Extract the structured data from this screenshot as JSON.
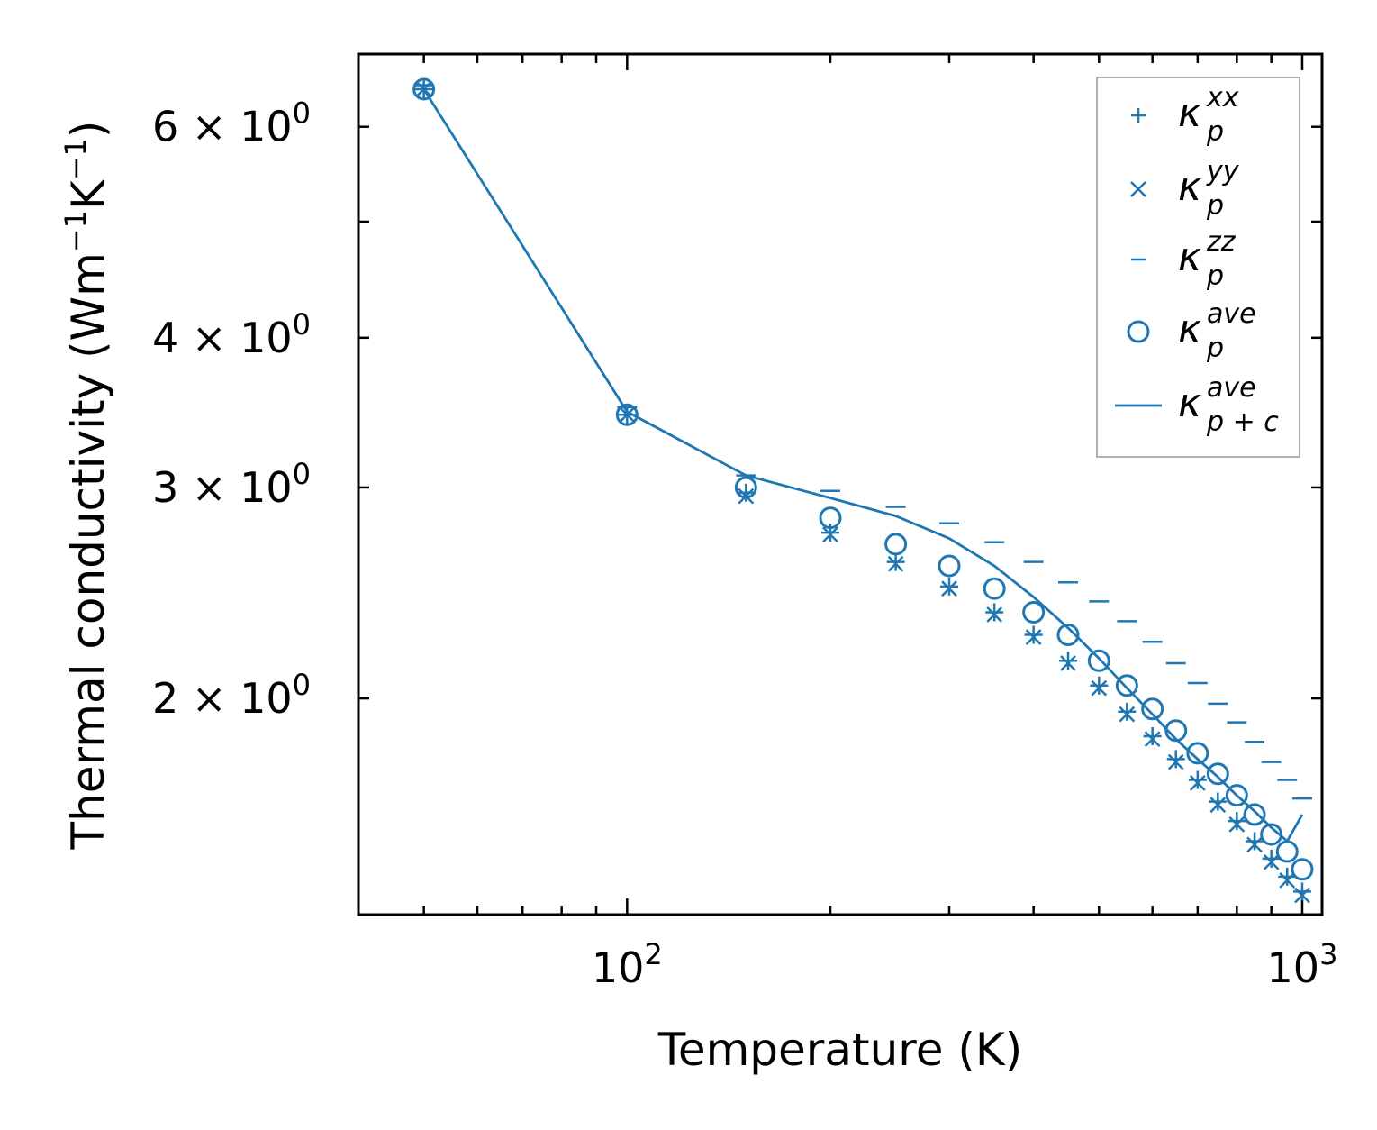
{
  "chart_data": {
    "type": "scatter",
    "xlabel": "Temperature (K)",
    "ylabel_main": "Thermal conductivity (Wm",
    "ylabel_sup1": "−1",
    "ylabel_mid": "K",
    "ylabel_sup2": "−1",
    "ylabel_end": ")",
    "xscale": "log",
    "yscale": "log",
    "xlim": [
      40,
      1070
    ],
    "ylim": [
      1.32,
      6.9
    ],
    "xticks": [
      {
        "value": 100,
        "base": "10",
        "exp": "2"
      },
      {
        "value": 1000,
        "base": "10",
        "exp": "3"
      }
    ],
    "yticks": [
      {
        "value": 2,
        "text": "2 × 10",
        "exp": "0"
      },
      {
        "value": 3,
        "text": "3 × 10",
        "exp": "0"
      },
      {
        "value": 4,
        "text": "4 × 10",
        "exp": "0"
      },
      {
        "value": 6,
        "text": "6 × 10",
        "exp": "0"
      }
    ],
    "color": "#1f77b4",
    "legend_position": "top-right",
    "x": [
      50,
      100,
      150,
      200,
      250,
      300,
      350,
      400,
      450,
      500,
      550,
      600,
      650,
      700,
      750,
      800,
      850,
      900,
      950,
      1000
    ],
    "series": [
      {
        "key": "xx",
        "marker": "plus",
        "legend_base": "κ",
        "legend_sup": "xx",
        "legend_sub": "p",
        "values": [
          6.45,
          3.45,
          2.97,
          2.75,
          2.6,
          2.48,
          2.36,
          2.26,
          2.15,
          2.05,
          1.95,
          1.86,
          1.78,
          1.71,
          1.64,
          1.58,
          1.52,
          1.47,
          1.42,
          1.38
        ]
      },
      {
        "key": "yy",
        "marker": "x",
        "legend_base": "κ",
        "legend_sup": "yy",
        "legend_sub": "p",
        "values": [
          6.45,
          3.45,
          2.95,
          2.74,
          2.59,
          2.47,
          2.35,
          2.25,
          2.14,
          2.04,
          1.94,
          1.85,
          1.77,
          1.7,
          1.63,
          1.57,
          1.51,
          1.46,
          1.41,
          1.37
        ]
      },
      {
        "key": "zz",
        "marker": "minus",
        "legend_base": "κ",
        "legend_sup": "zz",
        "legend_sub": "p",
        "values": [
          6.5,
          3.5,
          3.07,
          2.98,
          2.89,
          2.8,
          2.7,
          2.6,
          2.5,
          2.41,
          2.32,
          2.23,
          2.14,
          2.06,
          1.98,
          1.91,
          1.84,
          1.77,
          1.71,
          1.65
        ]
      },
      {
        "key": "ave",
        "marker": "circle",
        "legend_base": "κ",
        "legend_sup": "ave",
        "legend_sub": "p",
        "values": [
          6.45,
          3.45,
          3.0,
          2.83,
          2.69,
          2.58,
          2.47,
          2.36,
          2.26,
          2.15,
          2.05,
          1.96,
          1.88,
          1.8,
          1.73,
          1.66,
          1.6,
          1.54,
          1.49,
          1.44
        ]
      },
      {
        "key": "ave_pc",
        "marker": "line",
        "legend_base": "κ",
        "legend_sup": "ave",
        "legend_sub": "p + c",
        "values": [
          6.45,
          3.47,
          3.07,
          2.94,
          2.84,
          2.72,
          2.58,
          2.43,
          2.29,
          2.16,
          2.04,
          1.94,
          1.85,
          1.78,
          1.72,
          1.66,
          1.61,
          1.56,
          1.52,
          1.6
        ]
      }
    ]
  }
}
